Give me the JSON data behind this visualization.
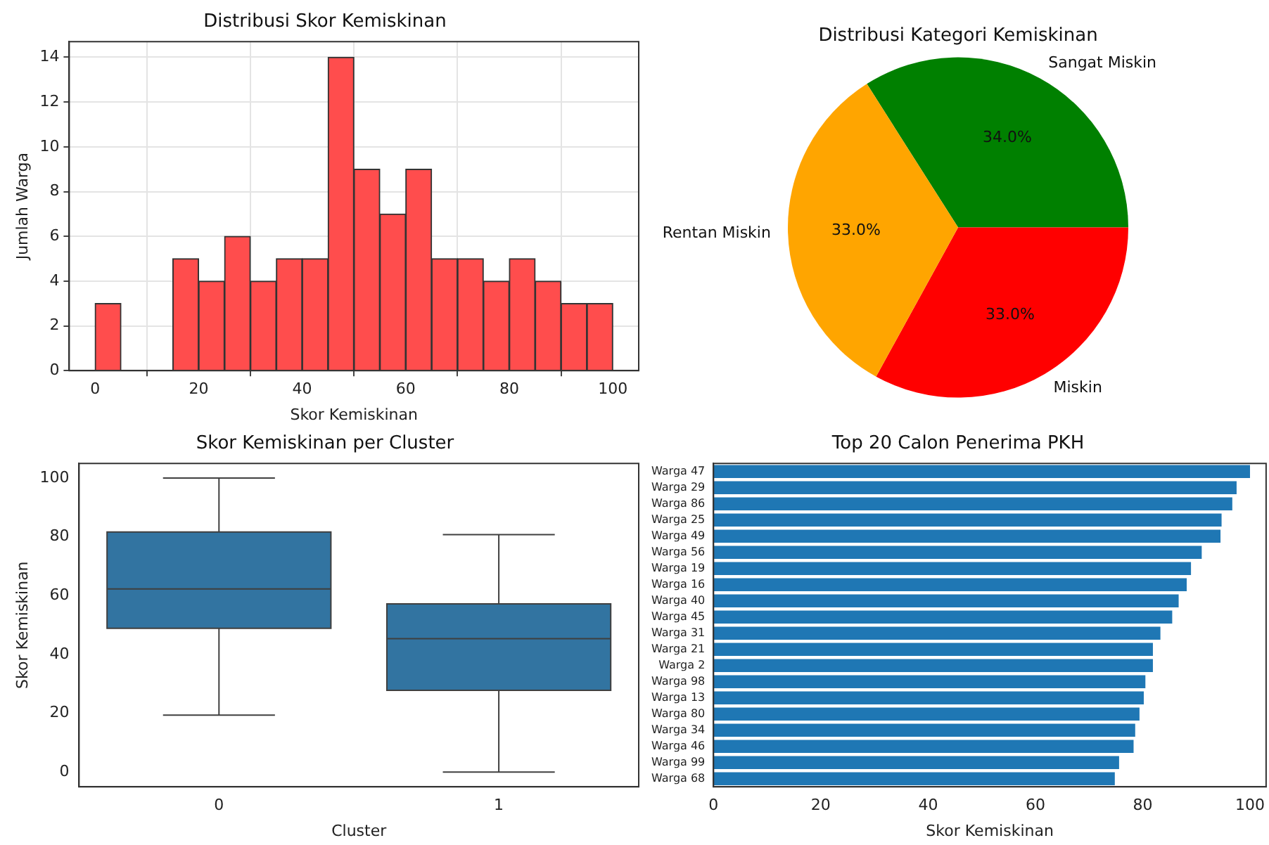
{
  "chart_data": [
    {
      "type": "histogram",
      "title": "Distribusi Skor Kemiskinan",
      "xlabel": "Skor Kemiskinan",
      "ylabel": "Jumlah Warga",
      "bins": [
        0,
        5,
        10,
        15,
        20,
        25,
        30,
        35,
        40,
        45,
        50,
        55,
        60,
        65,
        70,
        75,
        80,
        85,
        90,
        95,
        100
      ],
      "values": [
        3,
        0,
        0,
        5,
        4,
        6,
        4,
        5,
        5,
        14,
        9,
        7,
        9,
        5,
        5,
        4,
        5,
        4,
        3,
        3
      ],
      "color": "#ff4d4d",
      "xlim": [
        -5,
        105
      ],
      "xticks": [
        0,
        20,
        40,
        60,
        80,
        100
      ],
      "ylim": [
        0,
        14.7
      ],
      "yticks": [
        0,
        2,
        4,
        6,
        8,
        10,
        12,
        14
      ],
      "grid": true
    },
    {
      "type": "pie",
      "title": "Distribusi Kategori Kemiskinan",
      "categories": [
        "Sangat Miskin",
        "Miskin",
        "Rentan Miskin"
      ],
      "values": [
        34,
        33,
        33
      ],
      "colors": [
        "#008000",
        "#ff0000",
        "#ffa500"
      ],
      "value_labels": [
        "34.0%",
        "33.0%",
        "33.0%"
      ]
    },
    {
      "type": "box",
      "title": "Skor Kemiskinan per Cluster",
      "xlabel": "Cluster",
      "ylabel": "Skor Kemiskinan",
      "categories": [
        "0",
        "1"
      ],
      "boxes": [
        {
          "low": 19.4,
          "q1": 48.9,
          "median": 62.3,
          "q3": 81.7,
          "high": 100
        },
        {
          "low": 0,
          "q1": 27.8,
          "median": 45.4,
          "q3": 57.2,
          "high": 80.8
        }
      ],
      "color": "#3274a1",
      "ylim": [
        -5,
        105
      ],
      "yticks": [
        0,
        20,
        40,
        60,
        80,
        100
      ]
    },
    {
      "type": "bar",
      "orientation": "horizontal",
      "title": "Top 20 Calon Penerima PKH",
      "xlabel": "Skor Kemiskinan",
      "categories": [
        "Warga 47",
        "Warga 29",
        "Warga 86",
        "Warga 25",
        "Warga 49",
        "Warga 56",
        "Warga 19",
        "Warga 16",
        "Warga 40",
        "Warga 45",
        "Warga 31",
        "Warga 21",
        "Warga 2",
        "Warga 98",
        "Warga 13",
        "Warga 80",
        "Warga 34",
        "Warga 46",
        "Warga 99",
        "Warga 68"
      ],
      "values": [
        100,
        97.5,
        96.7,
        94.7,
        94.5,
        91.0,
        89.0,
        88.2,
        86.7,
        85.5,
        83.3,
        81.9,
        81.9,
        80.5,
        80.2,
        79.4,
        78.6,
        78.3,
        75.6,
        74.8
      ],
      "color": "#1f77b4",
      "xlim": [
        0,
        103
      ],
      "xticks": [
        0,
        20,
        40,
        60,
        80,
        100
      ]
    }
  ]
}
